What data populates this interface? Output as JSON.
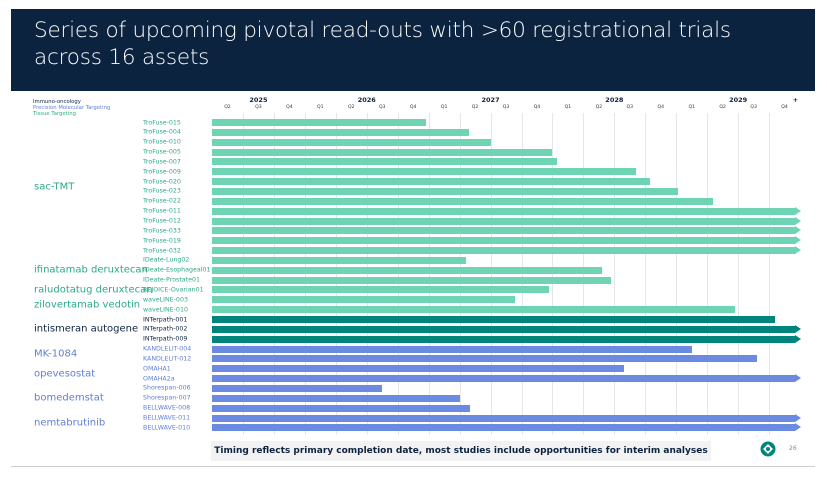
{
  "title": "Series of upcoming pivotal read-outs with >60 registrational trials across 16 assets",
  "legend": [
    {
      "label": "Immuno-oncology",
      "color": "#0c2340"
    },
    {
      "label": "Precision Molecular Targeting",
      "color": "#5f7fd6"
    },
    {
      "label": "Tissue Targeting",
      "color": "#2fa88a"
    }
  ],
  "colors": {
    "tissue": "#6fd4b4",
    "tissue_text": "#2fa88a",
    "io": "#00857c",
    "io_text": "#0c2340",
    "pmt": "#6b8be2",
    "pmt_text": "#5f7fd6",
    "title_bg": "#0c2340"
  },
  "timeline": {
    "years": [
      "2025",
      "2026",
      "2027",
      "2028",
      "2029",
      "+"
    ],
    "quarters": [
      "Q2",
      "Q3",
      "Q4",
      "Q1",
      "Q2",
      "Q3",
      "Q4",
      "Q1",
      "Q2",
      "Q3",
      "Q4",
      "Q1",
      "Q2",
      "Q3",
      "Q4",
      "Q1",
      "Q2",
      "Q3",
      "Q4"
    ],
    "start": "2025 Q2",
    "end": "2029 Q4"
  },
  "assets": [
    {
      "name": "sac-TMT",
      "group": "tissue"
    },
    {
      "name": "ifinatamab deruxtecan",
      "group": "tissue"
    },
    {
      "name": "raludotatug deruxtecan",
      "group": "tissue"
    },
    {
      "name": "zilovertamab vedotin",
      "group": "tissue"
    },
    {
      "name": "intismeran autogene",
      "group": "io"
    },
    {
      "name": "MK-1084",
      "group": "pmt"
    },
    {
      "name": "opevesostat",
      "group": "pmt"
    },
    {
      "name": "bomedemstat",
      "group": "pmt"
    },
    {
      "name": "nemtabrutinib",
      "group": "pmt"
    }
  ],
  "trials": [
    {
      "asset": "sac-TMT",
      "name": "TroFuse-015",
      "group": "tissue",
      "completion_q": 6.9,
      "beyond": false
    },
    {
      "asset": "sac-TMT",
      "name": "TroFuse-004",
      "group": "tissue",
      "completion_q": 8.3,
      "beyond": false
    },
    {
      "asset": "sac-TMT",
      "name": "TroFuse-010",
      "group": "tissue",
      "completion_q": 9.0,
      "beyond": false
    },
    {
      "asset": "sac-TMT",
      "name": "TroFuse-005",
      "group": "tissue",
      "completion_q": 11.0,
      "beyond": false
    },
    {
      "asset": "sac-TMT",
      "name": "TroFuse-007",
      "group": "tissue",
      "completion_q": 11.15,
      "beyond": false
    },
    {
      "asset": "sac-TMT",
      "name": "TroFuse-009",
      "group": "tissue",
      "completion_q": 13.7,
      "beyond": false
    },
    {
      "asset": "sac-TMT",
      "name": "TroFuse-020",
      "group": "tissue",
      "completion_q": 14.15,
      "beyond": false
    },
    {
      "asset": "sac-TMT",
      "name": "TroFuse-023",
      "group": "tissue",
      "completion_q": 15.05,
      "beyond": false
    },
    {
      "asset": "sac-TMT",
      "name": "TroFuse-022",
      "group": "tissue",
      "completion_q": 16.2,
      "beyond": false
    },
    {
      "asset": "sac-TMT",
      "name": "TroFuse-011",
      "group": "tissue",
      "completion_q": 19.0,
      "beyond": true
    },
    {
      "asset": "sac-TMT",
      "name": "TroFuse-012",
      "group": "tissue",
      "completion_q": 19.0,
      "beyond": true
    },
    {
      "asset": "sac-TMT",
      "name": "TroFuse-033",
      "group": "tissue",
      "completion_q": 19.0,
      "beyond": true
    },
    {
      "asset": "sac-TMT",
      "name": "TroFuse-019",
      "group": "tissue",
      "completion_q": 19.0,
      "beyond": true
    },
    {
      "asset": "sac-TMT",
      "name": "TroFuse-032",
      "group": "tissue",
      "completion_q": 19.0,
      "beyond": true
    },
    {
      "asset": "ifinatamab deruxtecan",
      "name": "IDeate-Lung02",
      "group": "tissue",
      "completion_q": 8.2,
      "beyond": false
    },
    {
      "asset": "ifinatamab deruxtecan",
      "name": "IDeate-Esophageal01",
      "group": "tissue",
      "completion_q": 12.6,
      "beyond": false
    },
    {
      "asset": "ifinatamab deruxtecan",
      "name": "IDeate-Prostate01",
      "group": "tissue",
      "completion_q": 12.9,
      "beyond": false
    },
    {
      "asset": "raludotatug deruxtecan",
      "name": "REJOICE-Ovarian01",
      "group": "tissue",
      "completion_q": 10.9,
      "beyond": false
    },
    {
      "asset": "zilovertamab vedotin",
      "name": "waveLINE-003",
      "group": "tissue",
      "completion_q": 9.8,
      "beyond": false
    },
    {
      "asset": "zilovertamab vedotin",
      "name": "waveLINE-010",
      "group": "tissue",
      "completion_q": 16.9,
      "beyond": false
    },
    {
      "asset": "intismeran autogene",
      "name": "INTerpath-001",
      "group": "io",
      "completion_q": 18.2,
      "beyond": false
    },
    {
      "asset": "intismeran autogene",
      "name": "INTerpath-002",
      "group": "io",
      "completion_q": 19.0,
      "beyond": true
    },
    {
      "asset": "intismeran autogene",
      "name": "INTerpath-009",
      "group": "io",
      "completion_q": 19.0,
      "beyond": true
    },
    {
      "asset": "MK-1084",
      "name": "KANDLELIT-004",
      "group": "pmt",
      "completion_q": 15.5,
      "beyond": false
    },
    {
      "asset": "MK-1084",
      "name": "KANDLELIT-012",
      "group": "pmt",
      "completion_q": 17.6,
      "beyond": false
    },
    {
      "asset": "opevesostat",
      "name": "OMAHA1",
      "group": "pmt",
      "completion_q": 13.3,
      "beyond": false
    },
    {
      "asset": "opevesostat",
      "name": "OMAHA2a",
      "group": "pmt",
      "completion_q": 19.0,
      "beyond": true
    },
    {
      "asset": "bomedemstat",
      "name": "Shorespan-006",
      "group": "pmt",
      "completion_q": 5.5,
      "beyond": false
    },
    {
      "asset": "bomedemstat",
      "name": "Shorespan-007",
      "group": "pmt",
      "completion_q": 8.0,
      "beyond": false
    },
    {
      "asset": "bomedemstat",
      "name": "BELLWAVE-008",
      "group": "pmt",
      "completion_q": 8.35,
      "beyond": false
    },
    {
      "asset": "nemtabrutinib",
      "name": "BELLWAVE-011",
      "group": "pmt",
      "completion_q": 19.0,
      "beyond": true
    },
    {
      "asset": "nemtabrutinib",
      "name": "BELLWAVE-010",
      "group": "pmt",
      "completion_q": 19.0,
      "beyond": true
    }
  ],
  "footnote": "Timing reflects primary completion date, most studies include opportunities for interim analyses",
  "page_number": "26",
  "logo_icon": "company-logo-icon"
}
